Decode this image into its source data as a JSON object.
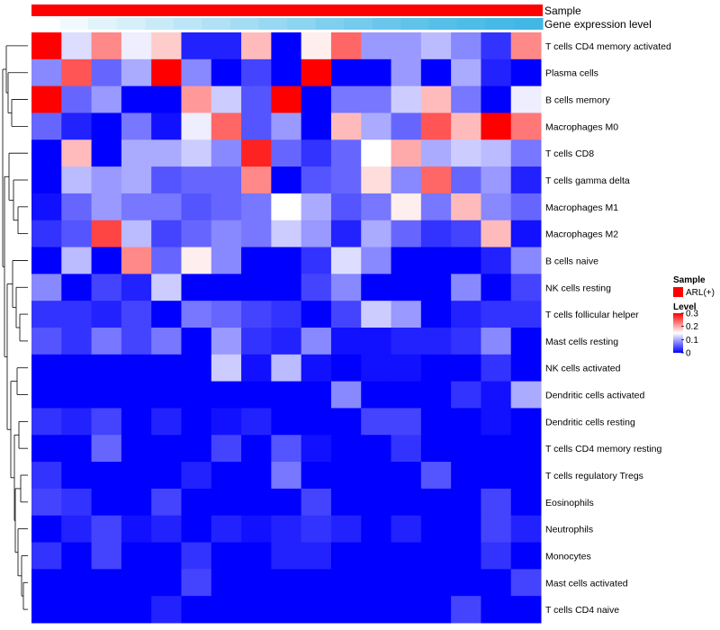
{
  "chart_data": {
    "type": "heatmap",
    "title": "",
    "annotations": {
      "sample_label": "Sample",
      "gene_expression_label": "Gene expression level",
      "sample_color": "#ff0000",
      "gene_expression_colors": [
        "#ffffff",
        "#f1f9fd",
        "#e2f4fb",
        "#d6f0fa",
        "#c9ebf8",
        "#bce6f7",
        "#b0e1f5",
        "#a4ddf3",
        "#98d8f2",
        "#8cd4f0",
        "#80cfee",
        "#75cbed",
        "#6ac7eb",
        "#5fc3ea",
        "#55bfe8",
        "#4dbce7",
        "#47b9e6",
        "#42b7e5"
      ]
    },
    "rows": [
      "T cells CD4 memory activated",
      "Plasma cells",
      "B cells memory",
      "Macrophages M0",
      "T cells CD8",
      "T cells gamma delta",
      "Macrophages M1",
      "Macrophages M2",
      "B cells naive",
      "NK cells resting",
      "T cells follicular helper",
      "Mast cells resting",
      "NK cells activated",
      "Dendritic cells activated",
      "Dendritic cells resting",
      "T cells CD4 memory resting",
      "T cells regulatory  Tregs",
      "Eosinophils",
      "Neutrophils",
      "Monocytes",
      "Mast cells activated",
      "T cells CD4 naive"
    ],
    "values": [
      [
        0.3,
        0.13,
        0.22,
        0.14,
        0.18,
        0.02,
        0.02,
        0.19,
        0.0,
        0.16,
        0.24,
        0.09,
        0.09,
        0.11,
        0.08,
        0.03,
        0.22
      ],
      [
        0.08,
        0.25,
        0.06,
        0.1,
        0.3,
        0.08,
        0.0,
        0.04,
        0.0,
        0.3,
        0.0,
        0.0,
        0.09,
        0.0,
        0.1,
        0.02,
        0.0
      ],
      [
        0.3,
        0.06,
        0.09,
        0.0,
        0.0,
        0.21,
        0.12,
        0.05,
        0.3,
        0.0,
        0.07,
        0.07,
        0.12,
        0.19,
        0.07,
        0.0,
        0.14
      ],
      [
        0.06,
        0.02,
        0.0,
        0.07,
        0.01,
        0.14,
        0.24,
        0.05,
        0.09,
        0.0,
        0.19,
        0.1,
        0.06,
        0.25,
        0.19,
        0.3,
        0.23
      ],
      [
        0.0,
        0.19,
        0.0,
        0.1,
        0.1,
        0.12,
        0.08,
        0.28,
        0.06,
        0.03,
        0.06,
        0.15,
        0.2,
        0.1,
        0.12,
        0.11,
        0.07
      ],
      [
        0.0,
        0.11,
        0.09,
        0.1,
        0.05,
        0.06,
        0.06,
        0.22,
        0.0,
        0.05,
        0.06,
        0.17,
        0.08,
        0.24,
        0.06,
        0.09,
        0.02
      ],
      [
        0.01,
        0.06,
        0.09,
        0.07,
        0.07,
        0.05,
        0.06,
        0.07,
        0.15,
        0.1,
        0.05,
        0.07,
        0.16,
        0.07,
        0.19,
        0.08,
        0.06
      ],
      [
        0.03,
        0.05,
        0.26,
        0.11,
        0.04,
        0.06,
        0.08,
        0.07,
        0.12,
        0.09,
        0.02,
        0.1,
        0.06,
        0.03,
        0.04,
        0.19,
        0.01
      ],
      [
        0.0,
        0.11,
        0.0,
        0.22,
        0.06,
        0.16,
        0.08,
        0.0,
        0.0,
        0.03,
        0.13,
        0.08,
        0.0,
        0.0,
        0.0,
        0.02,
        0.08
      ],
      [
        0.08,
        0.0,
        0.04,
        0.02,
        0.12,
        0.0,
        0.0,
        0.0,
        0.0,
        0.04,
        0.08,
        0.0,
        0.0,
        0.0,
        0.08,
        0.0,
        0.04
      ],
      [
        0.03,
        0.03,
        0.02,
        0.04,
        0.0,
        0.07,
        0.06,
        0.04,
        0.03,
        0.0,
        0.04,
        0.12,
        0.09,
        0.0,
        0.02,
        0.03,
        0.03
      ],
      [
        0.05,
        0.03,
        0.07,
        0.04,
        0.07,
        0.0,
        0.09,
        0.03,
        0.02,
        0.08,
        0.01,
        0.01,
        0.02,
        0.02,
        0.03,
        0.08,
        0.0
      ],
      [
        0.0,
        0.0,
        0.0,
        0.0,
        0.0,
        0.0,
        0.12,
        0.01,
        0.11,
        0.01,
        0.0,
        0.01,
        0.01,
        0.0,
        0.0,
        0.03,
        0.0
      ],
      [
        0.0,
        0.0,
        0.0,
        0.0,
        0.0,
        0.0,
        0.0,
        0.0,
        0.0,
        0.0,
        0.08,
        0.0,
        0.0,
        0.0,
        0.03,
        0.01,
        0.1
      ],
      [
        0.03,
        0.02,
        0.04,
        0.0,
        0.02,
        0.0,
        0.01,
        0.02,
        0.0,
        0.0,
        0.0,
        0.04,
        0.04,
        0.0,
        0.0,
        0.01,
        0.0
      ],
      [
        0.0,
        0.0,
        0.06,
        0.0,
        0.0,
        0.0,
        0.04,
        0.0,
        0.05,
        0.01,
        0.0,
        0.0,
        0.03,
        0.0,
        0.0,
        0.0,
        0.0
      ],
      [
        0.03,
        0.0,
        0.0,
        0.0,
        0.0,
        0.02,
        0.0,
        0.0,
        0.07,
        0.0,
        0.0,
        0.0,
        0.0,
        0.05,
        0.0,
        0.0,
        0.0
      ],
      [
        0.04,
        0.03,
        0.0,
        0.0,
        0.04,
        0.0,
        0.0,
        0.0,
        0.0,
        0.04,
        0.0,
        0.0,
        0.0,
        0.0,
        0.0,
        0.04,
        0.0
      ],
      [
        0.0,
        0.02,
        0.04,
        0.01,
        0.02,
        0.0,
        0.02,
        0.01,
        0.02,
        0.03,
        0.02,
        0.0,
        0.02,
        0.0,
        0.0,
        0.04,
        0.02
      ],
      [
        0.03,
        0.0,
        0.04,
        0.0,
        0.0,
        0.03,
        0.0,
        0.0,
        0.02,
        0.02,
        0.0,
        0.0,
        0.0,
        0.0,
        0.0,
        0.03,
        0.0
      ],
      [
        0.0,
        0.0,
        0.0,
        0.0,
        0.0,
        0.04,
        0.0,
        0.0,
        0.0,
        0.0,
        0.0,
        0.0,
        0.0,
        0.0,
        0.0,
        0.0,
        0.04
      ],
      [
        0.0,
        0.0,
        0.0,
        0.0,
        0.02,
        0.0,
        0.0,
        0.0,
        0.0,
        0.0,
        0.0,
        0.0,
        0.0,
        0.0,
        0.04,
        0.0,
        0.0
      ]
    ],
    "color_scale": {
      "min": 0,
      "mid": 0.15,
      "max": 0.3,
      "low_color": "#0000ff",
      "mid_color": "#ffffff",
      "high_color": "#ff0000"
    },
    "legend": {
      "sample_title": "Sample",
      "sample_entry": "ARL(+)",
      "level_title": "Level",
      "level_ticks": [
        "0.3",
        "0.2",
        "0.1",
        "0"
      ],
      "level_tick_values": [
        0.3,
        0.2,
        0.1,
        0
      ],
      "placement": "right"
    },
    "row_dendrogram": true
  }
}
